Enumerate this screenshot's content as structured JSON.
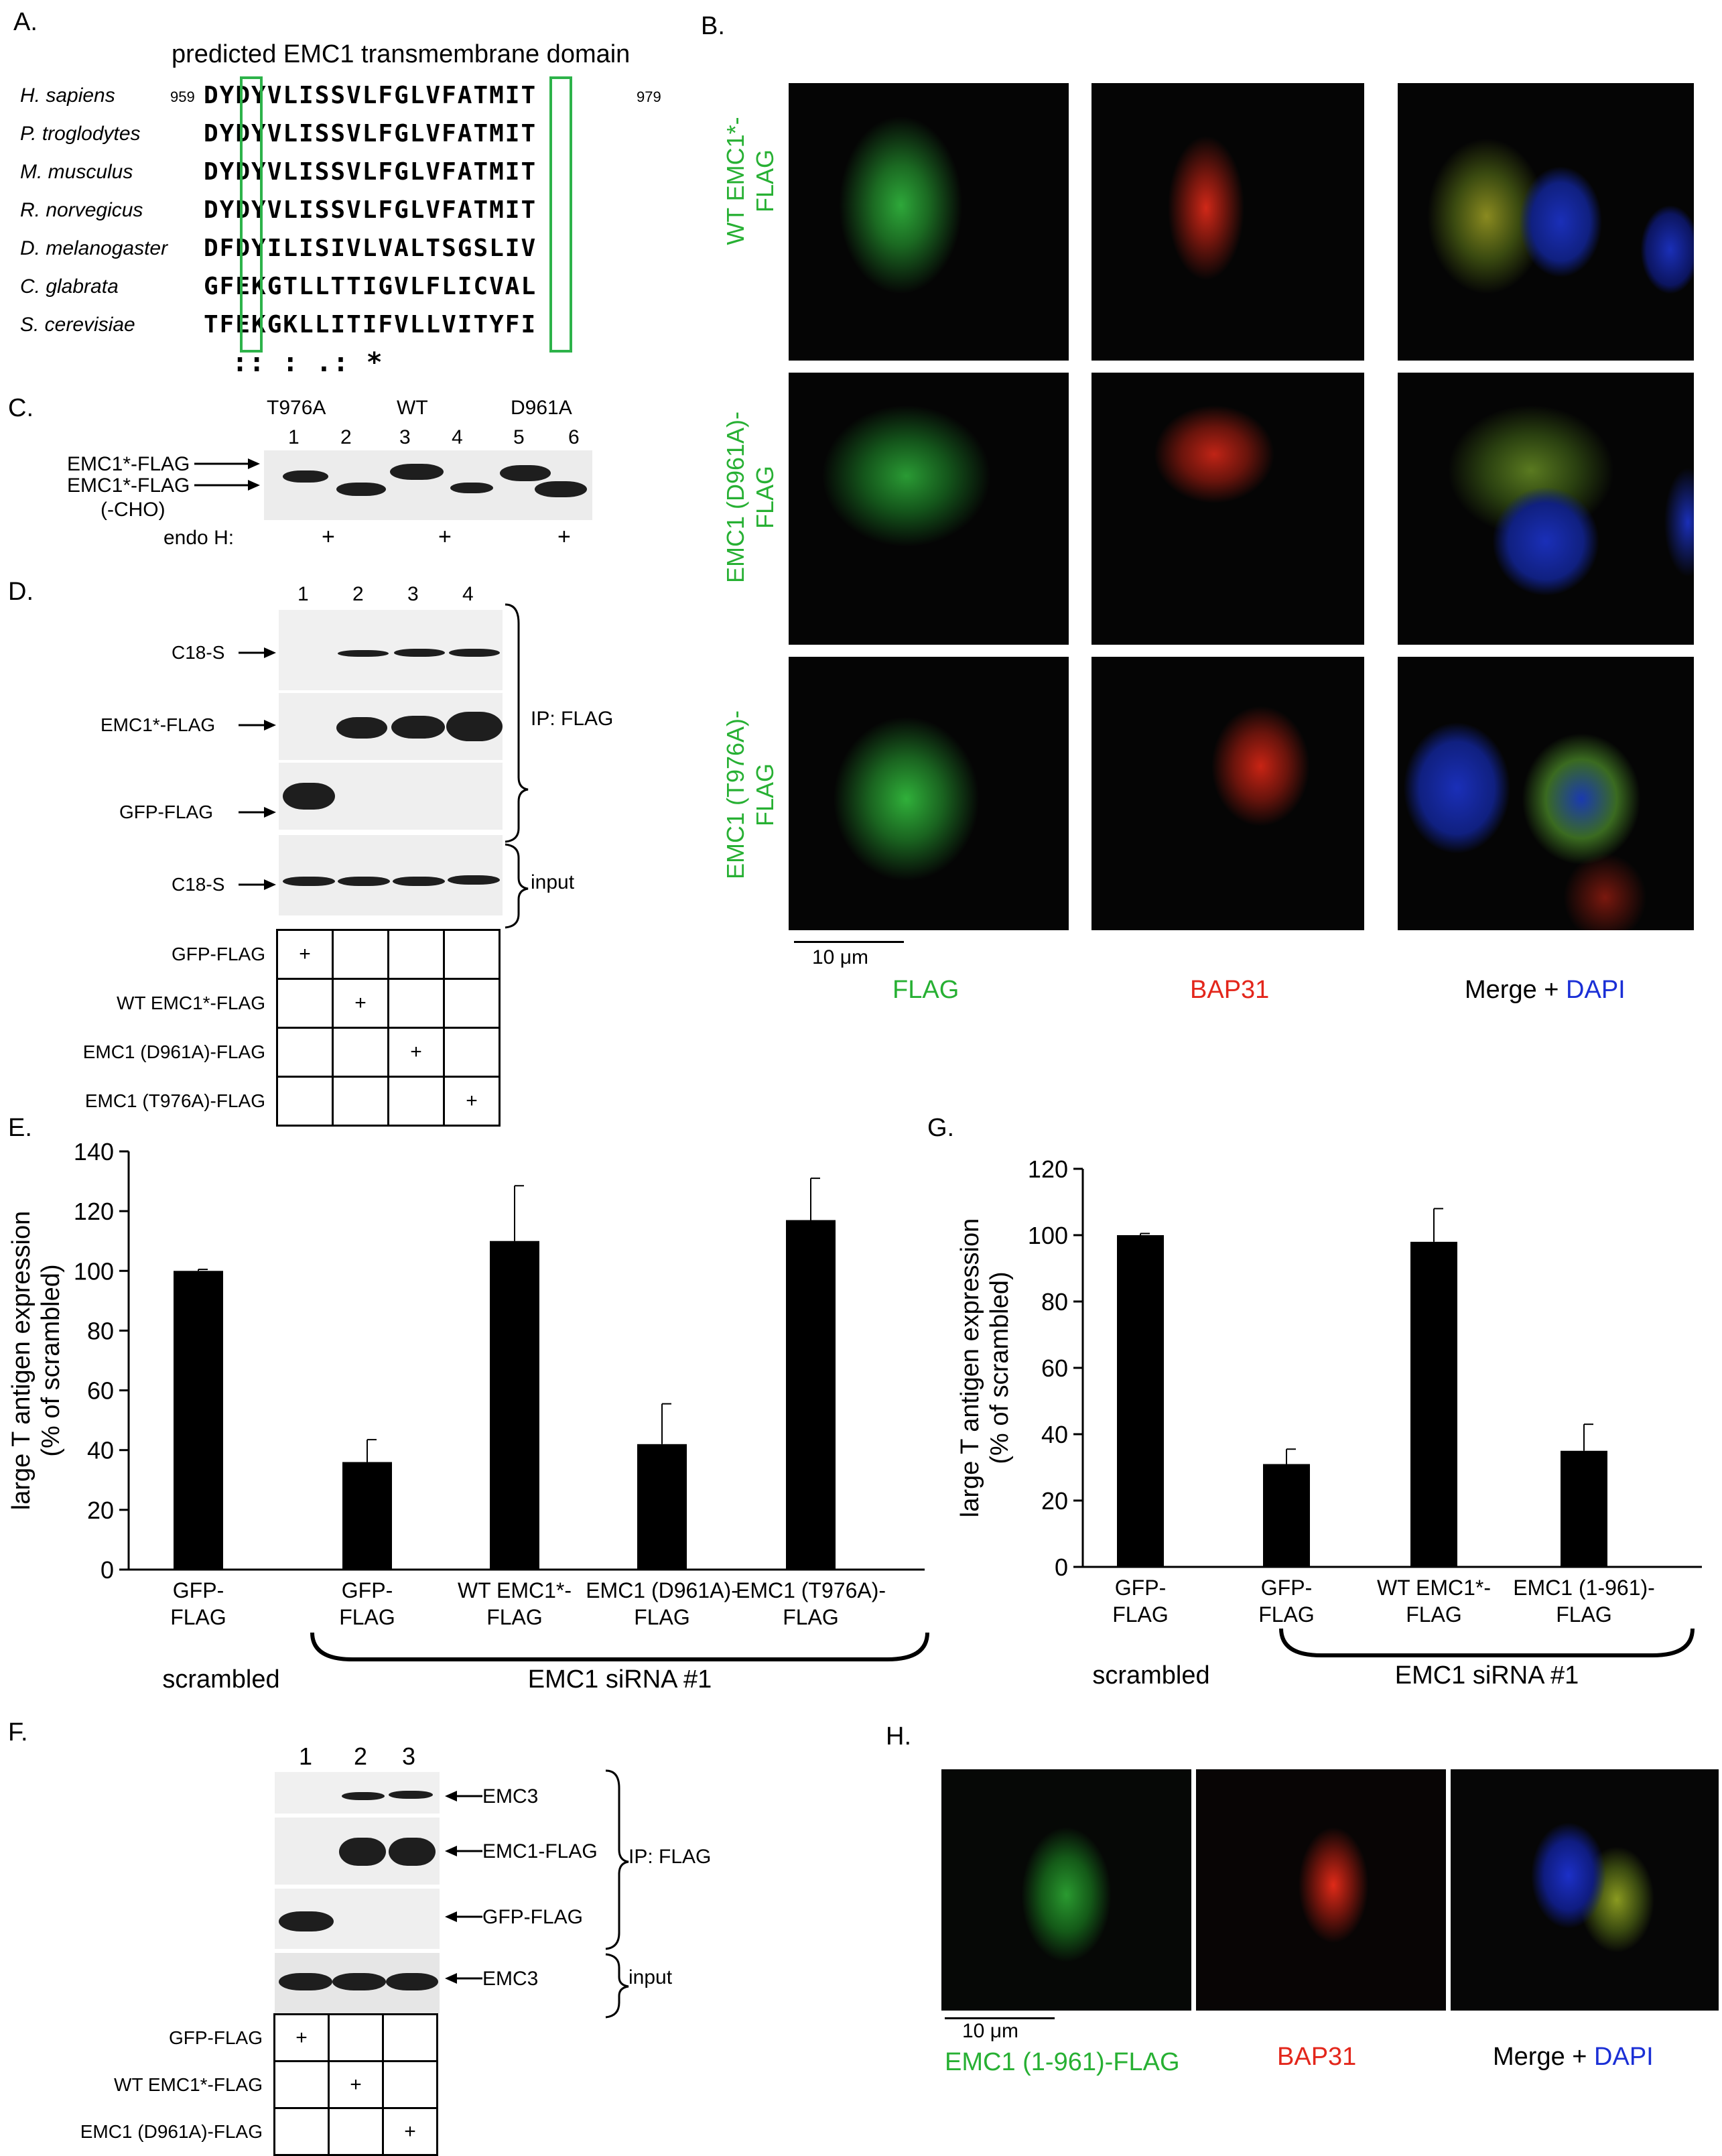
{
  "panelA": {
    "letter": "A.",
    "title": "predicted EMC1 transmembrane domain",
    "start_num": "959",
    "end_num": "979",
    "rows": [
      {
        "species": "H. sapiens",
        "seq": "DYDYVLISSVLFGLVFATMIT"
      },
      {
        "species": "P. troglodytes",
        "seq": "DYDYVLISSVLFGLVFATMIT"
      },
      {
        "species": "M. musculus",
        "seq": "DYDYVLISSVLFGLVFATMIT"
      },
      {
        "species": "R. norvegicus",
        "seq": "DYDYVLISSVLFGLVFATMIT"
      },
      {
        "species": "D. melanogaster",
        "seq": "DFDYILISIVLVALTSGSLIV"
      },
      {
        "species": "C. glabrata",
        "seq": "GFEKGTLLTTIGVLFLICVAL"
      },
      {
        "species": "S. cerevisiae",
        "seq": "TFEKGKLLITIFVLLVITYFI"
      }
    ],
    "conservation": ":: : .: *"
  },
  "panelB": {
    "letter": "B.",
    "rows": [
      "WT EMC1*-FLAG",
      "EMC1 (D961A)-FLAG",
      "EMC1 (T976A)-FLAG"
    ],
    "row_lines": [
      [
        "WT EMC1*-",
        "FLAG"
      ],
      [
        "EMC1 (D961A)-",
        "FLAG"
      ],
      [
        "EMC1 (T976A)-",
        "FLAG"
      ]
    ],
    "scale": "10 μm",
    "col_flag": "FLAG",
    "col_bap": "BAP31",
    "col_merge": "Merge + ",
    "col_dapi": "DAPI",
    "colors": {
      "green": "#27b033",
      "red": "#e3261b",
      "blue": "#1a2fd6"
    }
  },
  "panelC": {
    "letter": "C.",
    "groups": [
      "T976A",
      "WT",
      "D961A"
    ],
    "lanes": [
      "1",
      "2",
      "3",
      "4",
      "5",
      "6"
    ],
    "label1": "EMC1*-FLAG",
    "label2": "EMC1*-FLAG",
    "label3": "(-CHO)",
    "endo": "endo H:",
    "plus": "+"
  },
  "panelD": {
    "letter": "D.",
    "lanes": [
      "1",
      "2",
      "3",
      "4"
    ],
    "blots": [
      "C18-S",
      "EMC1*-FLAG",
      "GFP-FLAG",
      "C18-S"
    ],
    "ip": "IP: FLAG",
    "input": "input",
    "table_rows": [
      "GFP-FLAG",
      "WT EMC1*-FLAG",
      "EMC1 (D961A)-FLAG",
      "EMC1 (T976A)-FLAG"
    ],
    "plus": "+"
  },
  "panelE": {
    "letter": "E.",
    "chart_data": {
      "type": "bar",
      "categories": [
        "GFP-FLAG",
        "GFP-FLAG",
        "WT EMC1*-FLAG",
        "EMC1 (D961A)-FLAG",
        "EMC1 (T976A)-FLAG"
      ],
      "category_lines": [
        [
          "GFP-",
          "FLAG"
        ],
        [
          "GFP-",
          "FLAG"
        ],
        [
          "WT EMC1*-",
          "FLAG"
        ],
        [
          "EMC1 (D961A)-",
          "FLAG"
        ],
        [
          "EMC1 (T976A)-",
          "FLAG"
        ]
      ],
      "values": [
        100,
        36,
        110,
        42,
        117
      ],
      "errors": [
        0.5,
        7.5,
        18.5,
        13.5,
        14
      ],
      "ylabel": "large T antigen expression",
      "ylabel2": "(% of scrambled)",
      "ylim": [
        0,
        140
      ],
      "yticks": [
        0,
        20,
        40,
        60,
        80,
        100,
        120,
        140
      ],
      "group_left": "scrambled",
      "group_right": "EMC1 siRNA #1",
      "bar_color": "#000000"
    }
  },
  "panelF": {
    "letter": "F.",
    "lanes": [
      "1",
      "2",
      "3"
    ],
    "blots": [
      "EMC3",
      "EMC1-FLAG",
      "GFP-FLAG",
      "EMC3"
    ],
    "ip": "IP: FLAG",
    "input": "input",
    "table_rows": [
      "GFP-FLAG",
      "WT EMC1*-FLAG",
      "EMC1 (D961A)-FLAG"
    ],
    "plus": "+"
  },
  "panelG": {
    "letter": "G.",
    "chart_data": {
      "type": "bar",
      "categories": [
        "GFP-FLAG",
        "GFP-FLAG",
        "WT EMC1*-FLAG",
        "EMC1 (1-961)-FLAG"
      ],
      "category_lines": [
        [
          "GFP-",
          "FLAG"
        ],
        [
          "GFP-",
          "FLAG"
        ],
        [
          "WT EMC1*-",
          "FLAG"
        ],
        [
          "EMC1 (1-961)-",
          "FLAG"
        ]
      ],
      "values": [
        100,
        31,
        98,
        35
      ],
      "errors": [
        0.5,
        4.5,
        10,
        8
      ],
      "ylabel": "large T antigen expression",
      "ylabel2": "(% of scrambled)",
      "ylim": [
        0,
        120
      ],
      "yticks": [
        0,
        20,
        40,
        60,
        80,
        100,
        120
      ],
      "group_left": "scrambled",
      "group_right": "EMC1 siRNA #1",
      "bar_color": "#000000"
    }
  },
  "panelH": {
    "letter": "H.",
    "scale": "10 μm",
    "col_flag": "EMC1 (1-961)-FLAG",
    "col_bap": "BAP31",
    "col_merge": "Merge + ",
    "col_dapi": "DAPI"
  }
}
